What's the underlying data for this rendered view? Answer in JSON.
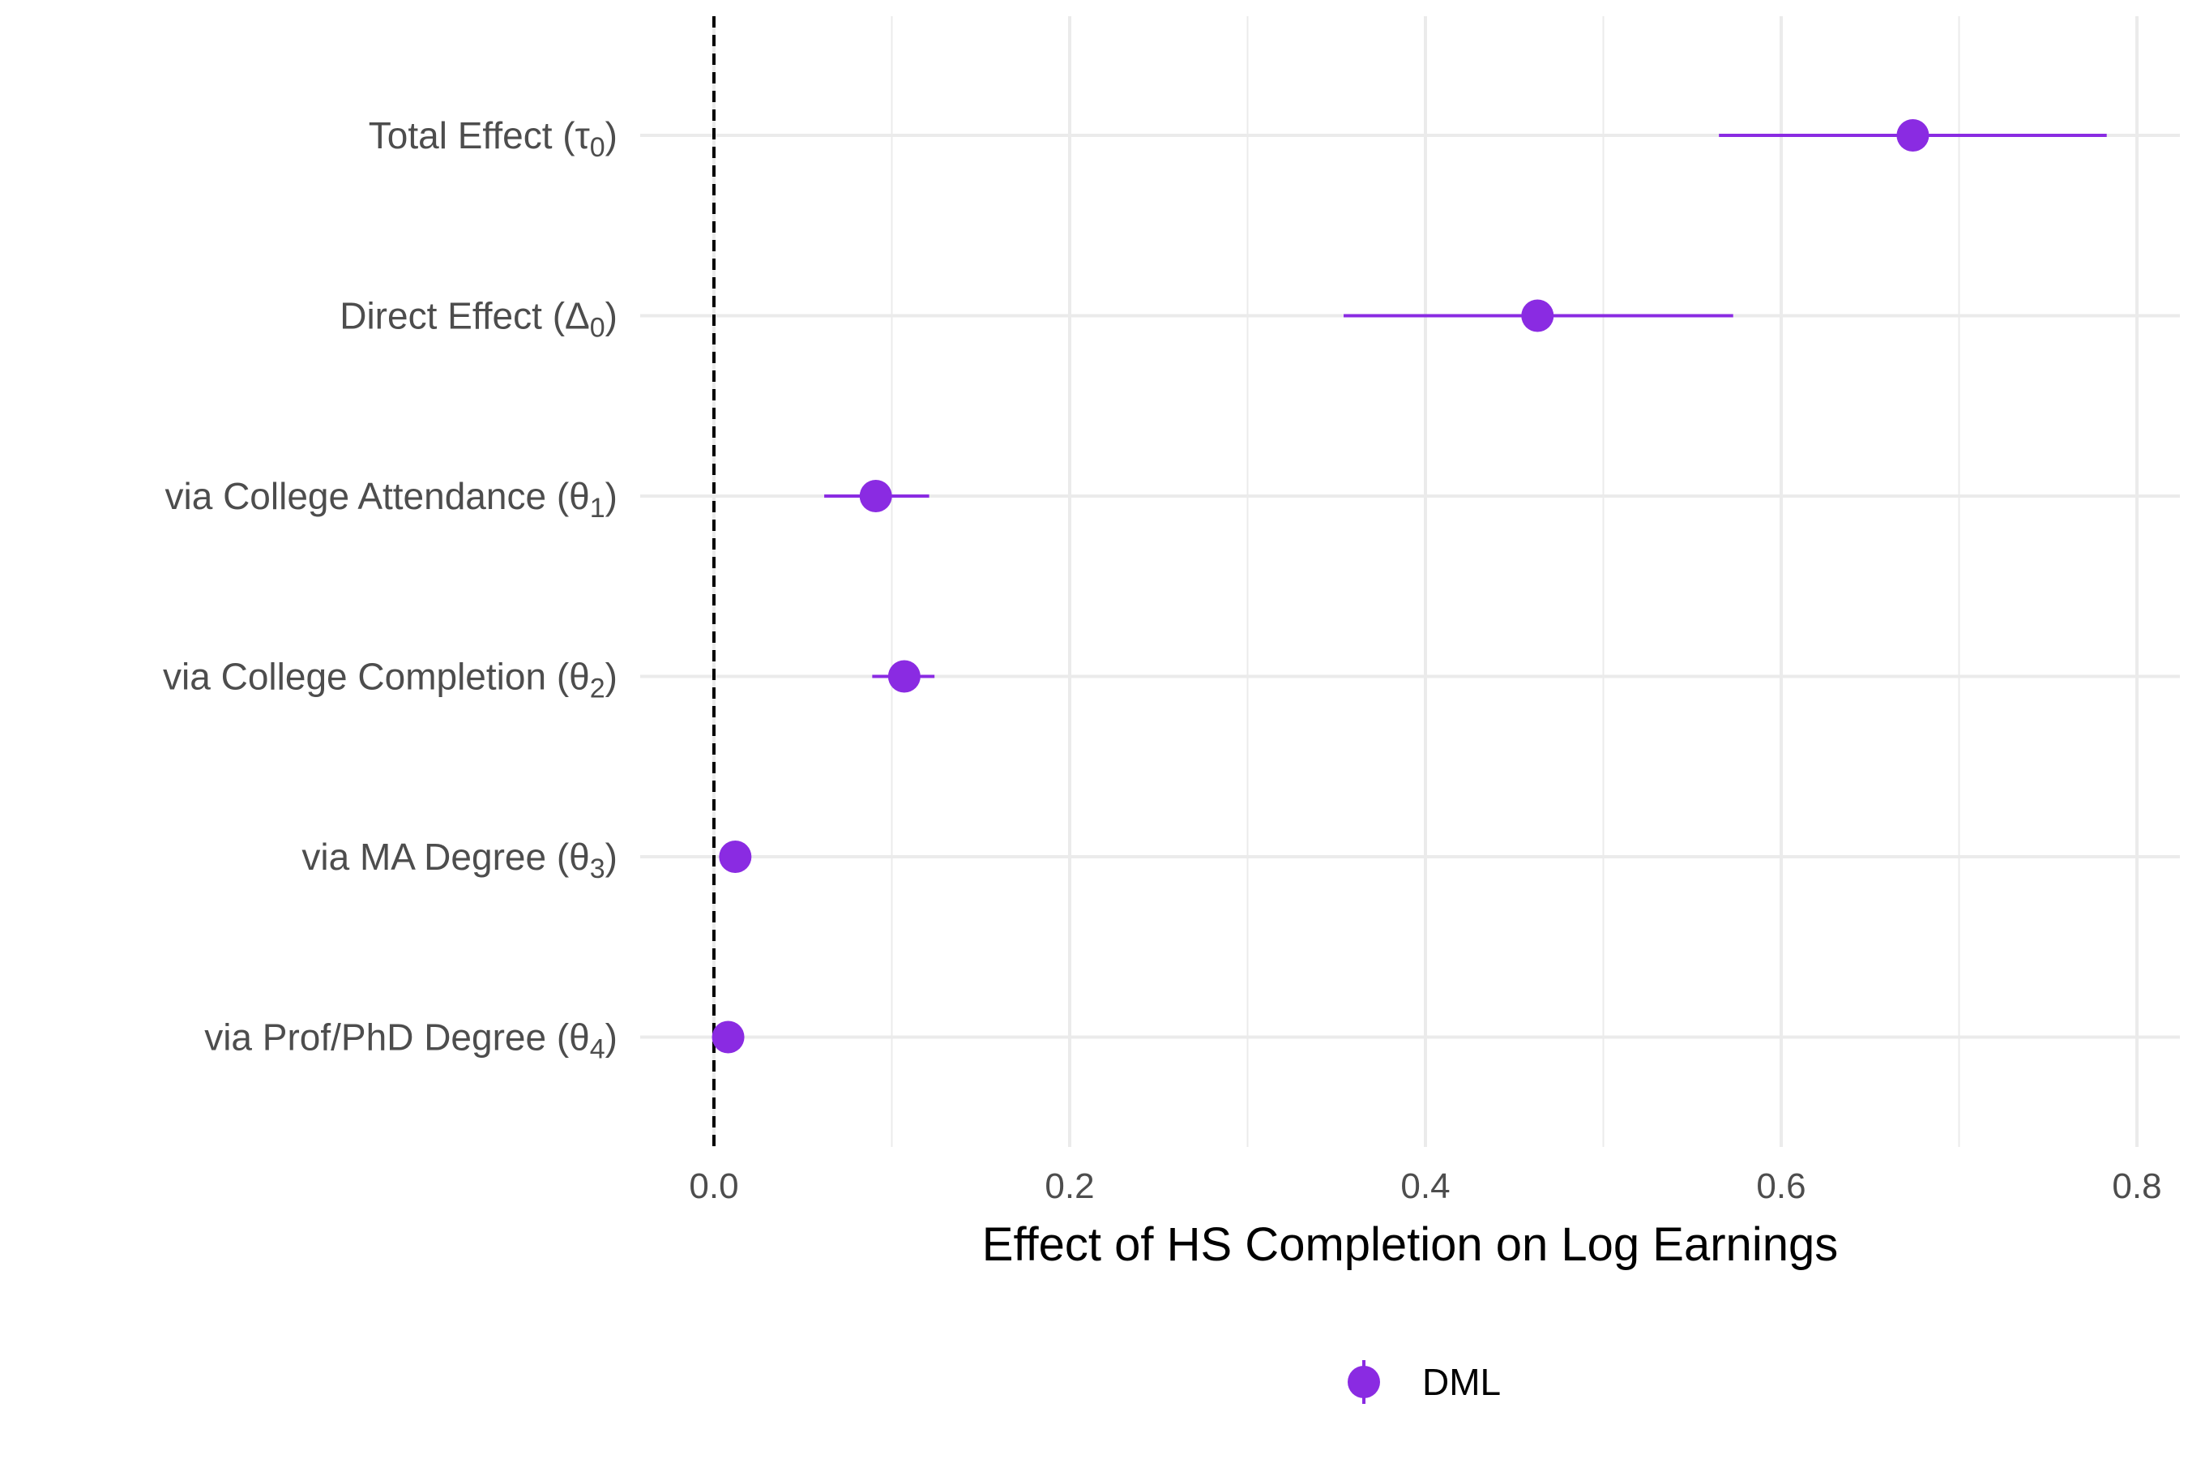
{
  "chart_data": {
    "type": "forest",
    "xlabel": "Effect of HS Completion on Log Earnings",
    "ylabel": "",
    "xlim": [
      -0.035,
      0.82
    ],
    "x_ticks": [
      0.0,
      0.2,
      0.4,
      0.6,
      0.8
    ],
    "x_tick_labels": [
      "0.0",
      "0.2",
      "0.4",
      "0.6",
      "0.8"
    ],
    "reference_line": {
      "x": 0.0,
      "style": "dashed",
      "color": "#000000"
    },
    "grid": true,
    "legend_position": "bottom",
    "categories": [
      {
        "name": "Total Effect",
        "symbol": "τ",
        "sub": "0"
      },
      {
        "name": "Direct Effect",
        "symbol": "Δ",
        "sub": "0"
      },
      {
        "name": "via College Attendance",
        "symbol": "θ",
        "sub": "1"
      },
      {
        "name": "via College Completion",
        "symbol": "θ",
        "sub": "2"
      },
      {
        "name": "via MA Degree",
        "symbol": "θ",
        "sub": "3"
      },
      {
        "name": "via Prof/PhD Degree",
        "symbol": "θ",
        "sub": "4"
      }
    ],
    "series": [
      {
        "name": "DML",
        "color": "#8A2BE2",
        "estimates": [
          0.674,
          0.463,
          0.091,
          0.107,
          0.012,
          0.008
        ],
        "ci_low": [
          0.565,
          0.354,
          0.062,
          0.089,
          0.008,
          0.005
        ],
        "ci_high": [
          0.783,
          0.573,
          0.121,
          0.124,
          0.016,
          0.011
        ]
      }
    ]
  }
}
